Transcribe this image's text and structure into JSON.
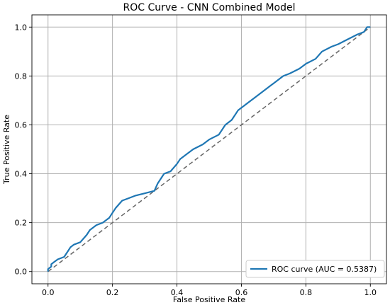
{
  "chart_data": {
    "type": "line",
    "title": "ROC Curve - CNN Combined Model",
    "xlabel": "False Positive Rate",
    "ylabel": "True Positive Rate",
    "xlim": [
      -0.05,
      1.05
    ],
    "ylim": [
      -0.05,
      1.05
    ],
    "x_ticks": [
      "0.0",
      "0.2",
      "0.4",
      "0.6",
      "0.8",
      "1.0"
    ],
    "y_ticks": [
      "0.0",
      "0.2",
      "0.4",
      "0.6",
      "0.8",
      "1.0"
    ],
    "grid": true,
    "legend_position": "lower-right",
    "colors": {
      "roc": "#1f77b4",
      "diagonal": "#666666",
      "grid": "#b0b0b0"
    },
    "series": [
      {
        "name": "ROC curve (AUC = 0.5387)",
        "x": [
          0.0,
          0.0,
          0.01,
          0.01,
          0.02,
          0.03,
          0.05,
          0.06,
          0.07,
          0.08,
          0.1,
          0.12,
          0.13,
          0.15,
          0.17,
          0.19,
          0.2,
          0.21,
          0.23,
          0.25,
          0.27,
          0.3,
          0.33,
          0.34,
          0.35,
          0.36,
          0.38,
          0.4,
          0.41,
          0.43,
          0.45,
          0.48,
          0.5,
          0.53,
          0.55,
          0.57,
          0.59,
          0.6,
          0.62,
          0.65,
          0.68,
          0.7,
          0.73,
          0.75,
          0.78,
          0.8,
          0.83,
          0.85,
          0.88,
          0.9,
          0.93,
          0.96,
          0.98,
          0.99,
          1.0
        ],
        "y": [
          0.0,
          0.01,
          0.02,
          0.03,
          0.04,
          0.05,
          0.06,
          0.08,
          0.1,
          0.11,
          0.12,
          0.15,
          0.17,
          0.19,
          0.2,
          0.22,
          0.24,
          0.26,
          0.29,
          0.3,
          0.31,
          0.32,
          0.33,
          0.36,
          0.38,
          0.4,
          0.41,
          0.44,
          0.46,
          0.48,
          0.5,
          0.52,
          0.54,
          0.56,
          0.6,
          0.62,
          0.66,
          0.67,
          0.69,
          0.72,
          0.75,
          0.77,
          0.8,
          0.81,
          0.83,
          0.85,
          0.87,
          0.9,
          0.92,
          0.93,
          0.95,
          0.97,
          0.98,
          1.0,
          1.0
        ]
      },
      {
        "x": [
          0.0,
          1.0
        ],
        "y": [
          0.0,
          1.0
        ]
      }
    ]
  }
}
